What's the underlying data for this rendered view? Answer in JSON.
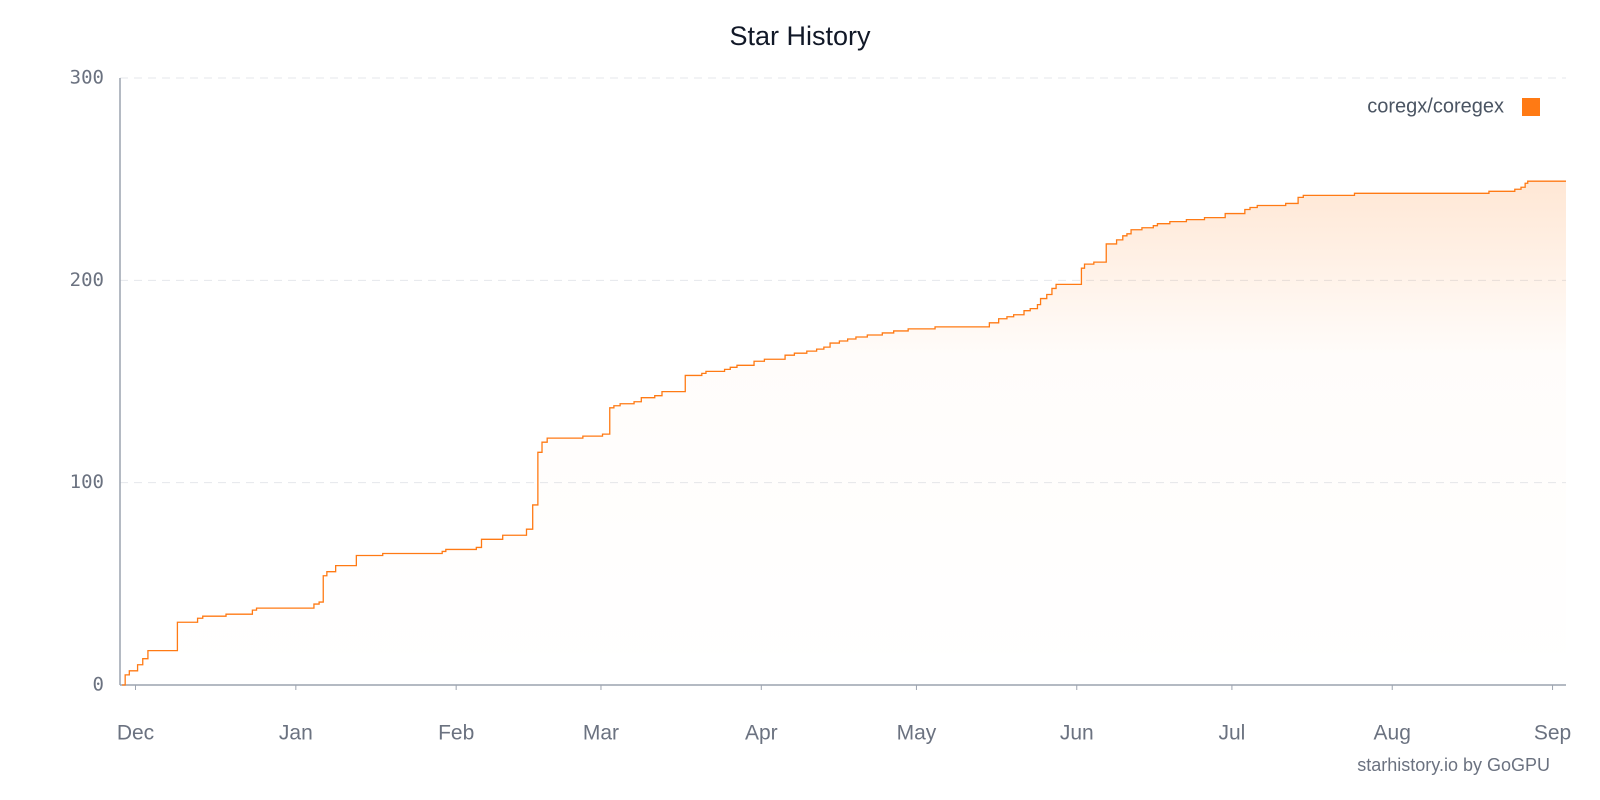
{
  "chart_data": {
    "type": "line",
    "title": "Star History",
    "source": "starhistory.io by GoGPU",
    "step": true,
    "area_fill": true,
    "grid": true,
    "legend_position": "top-right",
    "xlim": [
      -3,
      276.6
    ],
    "xticks": [
      {
        "value": 0,
        "label": "Dec"
      },
      {
        "value": 31,
        "label": "Jan"
      },
      {
        "value": 62,
        "label": "Feb"
      },
      {
        "value": 90,
        "label": "Mar"
      },
      {
        "value": 121,
        "label": "Apr"
      },
      {
        "value": 151,
        "label": "May"
      },
      {
        "value": 182,
        "label": "Jun"
      },
      {
        "value": 212,
        "label": "Jul"
      },
      {
        "value": 243,
        "label": "Aug"
      },
      {
        "value": 274,
        "label": "Sep"
      }
    ],
    "ylim": [
      0,
      300
    ],
    "yticks": [
      0,
      100,
      200,
      300
    ],
    "x": [
      -2.6,
      -2,
      -1.2,
      0.4,
      1.4,
      2.4,
      8.1,
      12,
      13,
      17.5,
      22.6,
      23.4,
      34.5,
      35.5,
      36.3,
      37,
      38.7,
      42.7,
      47.8,
      59.3,
      60,
      65.9,
      66.9,
      71,
      75.6,
      76.8,
      77.8,
      78.6,
      79.6,
      86.5,
      90.3,
      91.7,
      92.5,
      93.7,
      96.4,
      97.8,
      100.4,
      101.8,
      106.3,
      109.5,
      110.3,
      113.9,
      115,
      116.3,
      119.6,
      121.6,
      125.6,
      127.4,
      129.8,
      131.7,
      133.1,
      134.3,
      136.1,
      137.7,
      139.3,
      141.5,
      144.4,
      146.6,
      149.4,
      154.6,
      165.1,
      166.9,
      168.5,
      169.8,
      171.8,
      173,
      174.4,
      175,
      176.2,
      177.2,
      178,
      182.9,
      183.5,
      185.3,
      187.7,
      189.7,
      190.9,
      191.7,
      192.5,
      194.6,
      196.8,
      197.6,
      200,
      203.2,
      206.7,
      210.7,
      214.5,
      215.5,
      216.9,
      222.4,
      224.8,
      225.8,
      235.7,
      261.7,
      266.7,
      267.9,
      268.7,
      269.2,
      276.6
    ],
    "series": [
      {
        "name": "coregx/coregex",
        "color": "#ff7a14",
        "values": [
          0,
          5,
          7,
          10,
          13,
          17,
          31,
          33,
          34,
          35,
          37,
          38,
          40,
          41,
          54,
          56,
          59,
          64,
          65,
          66,
          67,
          68,
          72,
          74,
          77,
          89,
          115,
          120,
          122,
          123,
          124,
          137,
          138,
          139,
          140,
          142,
          143,
          145,
          153,
          154,
          155,
          156,
          157,
          158,
          160,
          161,
          163,
          164,
          165,
          166,
          167,
          169,
          170,
          171,
          172,
          173,
          174,
          175,
          176,
          177,
          179,
          181,
          182,
          183,
          185,
          186,
          188,
          191,
          193,
          196,
          198,
          206,
          208,
          209,
          218,
          220,
          222,
          223,
          225,
          226,
          227,
          228,
          229,
          230,
          231,
          233,
          235,
          236,
          237,
          238,
          241,
          242,
          243,
          244,
          245,
          246,
          248,
          249,
          249
        ]
      }
    ]
  }
}
